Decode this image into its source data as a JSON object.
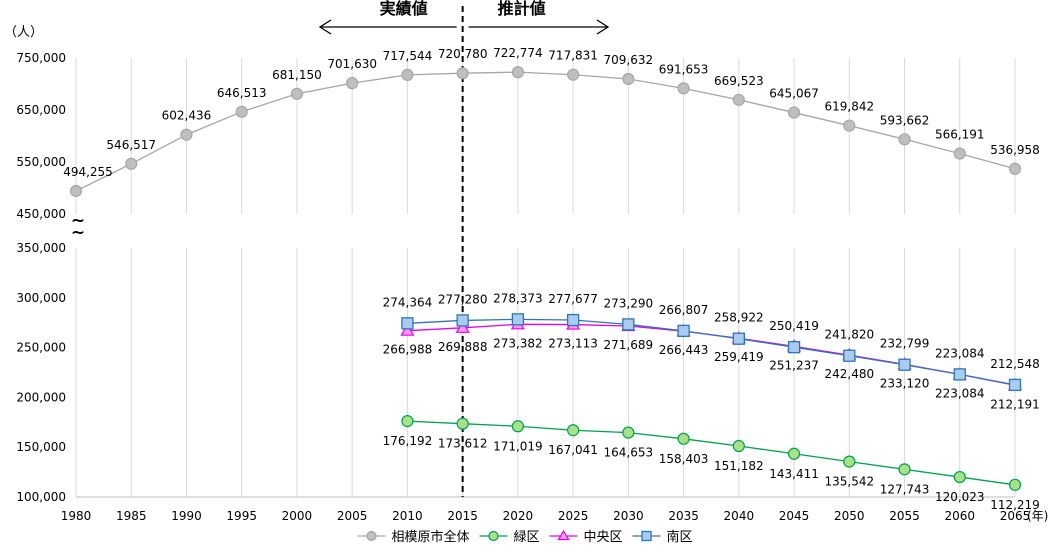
{
  "chart_data": {
    "type": "line",
    "y_unit_label": "（人）",
    "x_unit_label": "(年)",
    "break_mark": "~\n~",
    "actual_label": "実績値",
    "projection_label": "推計値",
    "divider_year": 2015,
    "x": [
      1980,
      1985,
      1990,
      1995,
      2000,
      2005,
      2010,
      2015,
      2020,
      2025,
      2030,
      2035,
      2040,
      2045,
      2050,
      2055,
      2060,
      2065
    ],
    "upper_axis": {
      "ylim": [
        450000,
        750000
      ],
      "ticks": [
        450000,
        550000,
        650000,
        750000
      ]
    },
    "lower_axis": {
      "ylim": [
        100000,
        350000
      ],
      "ticks": [
        100000,
        150000,
        200000,
        250000,
        300000,
        350000
      ]
    },
    "series": [
      {
        "name": "相模原市全体",
        "color": "#a6a6a6",
        "fill": "#bfbfbf",
        "marker": "circle",
        "axis": "upper",
        "x": [
          1980,
          1985,
          1990,
          1995,
          2000,
          2005,
          2010,
          2015,
          2020,
          2025,
          2030,
          2035,
          2040,
          2045,
          2050,
          2055,
          2060,
          2065
        ],
        "values": [
          494255,
          546517,
          602436,
          646513,
          681150,
          701630,
          717544,
          720780,
          722774,
          717831,
          709632,
          691653,
          669523,
          645067,
          619842,
          593662,
          566191,
          536958
        ],
        "labels": [
          "494,255",
          "546,517",
          "602,436",
          "646,513",
          "681,150",
          "701,630",
          "717,544",
          "720,780",
          "722,774",
          "717,831",
          "709,632",
          "691,653",
          "669,523",
          "645,067",
          "619,842",
          "593,662",
          "566,191",
          "536,958"
        ]
      },
      {
        "name": "緑区",
        "color": "#00a04e",
        "fill": "#a9e08a",
        "marker": "circle",
        "axis": "lower",
        "x": [
          2010,
          2015,
          2020,
          2025,
          2030,
          2035,
          2040,
          2045,
          2050,
          2055,
          2060,
          2065
        ],
        "values": [
          176192,
          173612,
          171019,
          167041,
          164653,
          158403,
          151182,
          143411,
          135542,
          127743,
          120023,
          112219
        ],
        "labels": [
          "176,192",
          "173,612",
          "171,019",
          "167,041",
          "164,653",
          "158,403",
          "151,182",
          "143,411",
          "135,542",
          "127,743",
          "120,023",
          "112,219"
        ]
      },
      {
        "name": "中央区",
        "color": "#e600e6",
        "fill": "#ff99ff",
        "marker": "triangle",
        "axis": "lower",
        "x": [
          2010,
          2015,
          2020,
          2025,
          2030,
          2035,
          2040,
          2045,
          2050,
          2055,
          2060,
          2065
        ],
        "values": [
          266988,
          269888,
          273382,
          273113,
          271689,
          266443,
          259419,
          251237,
          242480,
          233120,
          223084,
          212191
        ],
        "labels": [
          "266,988",
          "269,888",
          "273,382",
          "273,113",
          "271,689",
          "266,443",
          "259,419",
          "251,237",
          "242,480",
          "233,120",
          "223,084",
          "212,191"
        ]
      },
      {
        "name": "南区",
        "color": "#2e75b6",
        "fill": "#a9cbee",
        "marker": "square",
        "axis": "lower",
        "x": [
          2010,
          2015,
          2020,
          2025,
          2030,
          2035,
          2040,
          2045,
          2050,
          2055,
          2060,
          2065
        ],
        "values": [
          274364,
          277280,
          278373,
          277677,
          273290,
          266807,
          258922,
          250419,
          241820,
          232799,
          223084,
          212548
        ],
        "labels": [
          "274,364",
          "277,280",
          "278,373",
          "277,677",
          "273,290",
          "266,807",
          "258,922",
          "250,419",
          "241,820",
          "232,799",
          "223,084",
          "212,548"
        ]
      }
    ],
    "legend": {
      "position": "bottom-center",
      "entries": [
        "相模原市全体",
        "緑区",
        "中央区",
        "南区"
      ]
    }
  }
}
